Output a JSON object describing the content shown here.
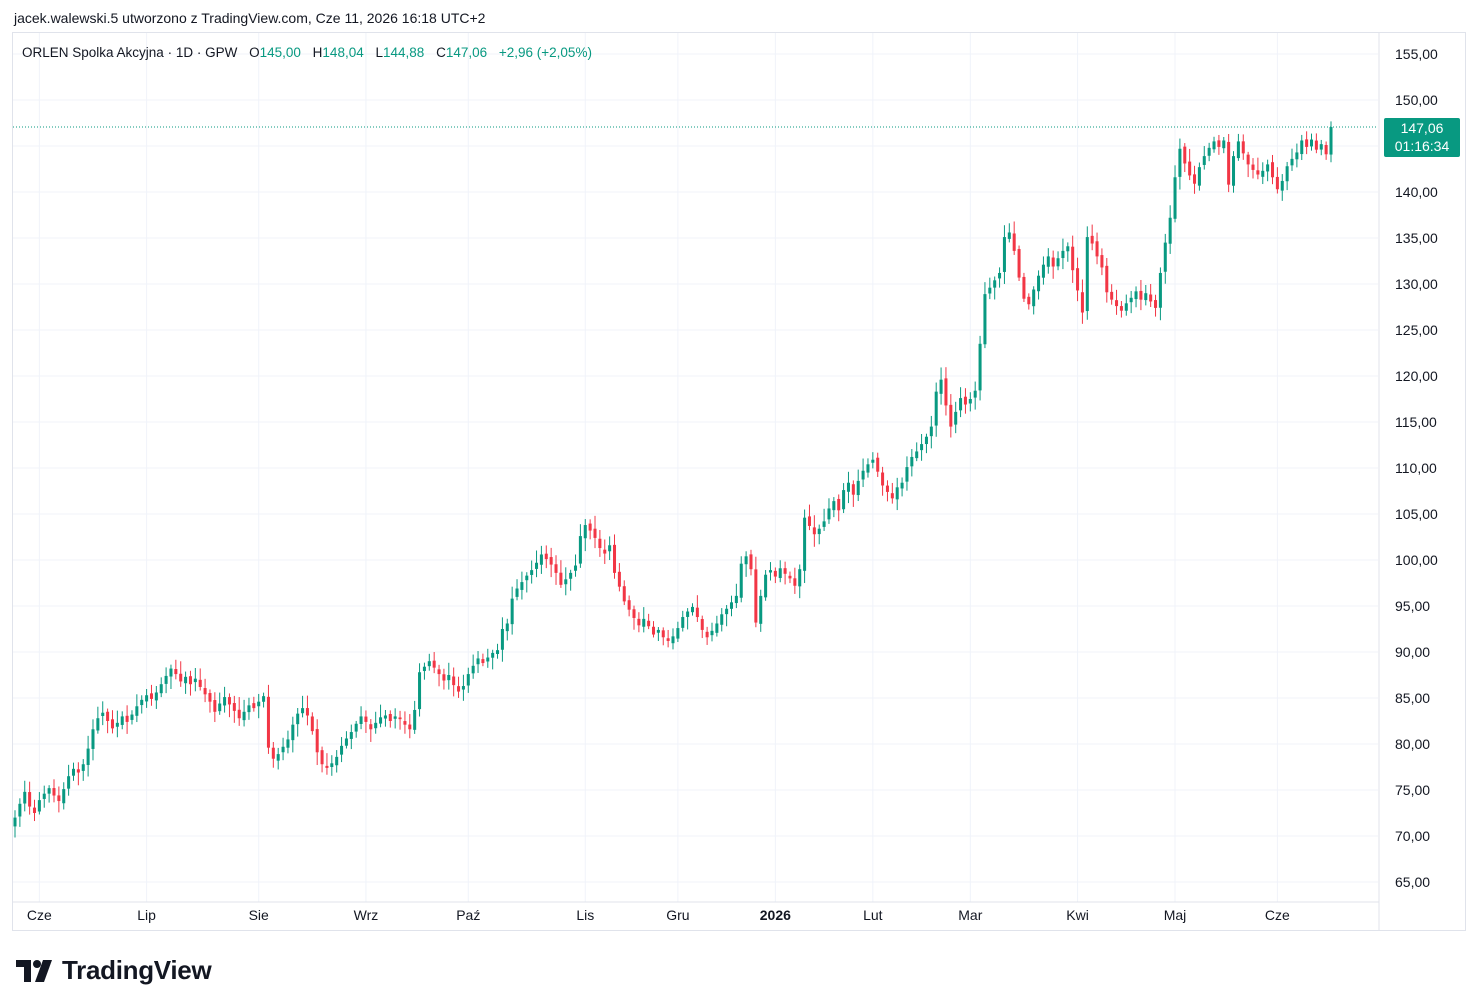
{
  "header": {
    "text": "jacek.walewski.5 utworzono z TradingView.com, Cze 11, 2026 16:18 UTC+2"
  },
  "legend": {
    "symbol": "ORLEN Spolka Akcyjna · 1D · GPW",
    "open_label": "O",
    "open": "145,00",
    "high_label": "H",
    "high": "148,04",
    "low_label": "L",
    "low": "144,88",
    "close_label": "C",
    "close": "147,06",
    "change": "+2,96 (+2,05%)"
  },
  "price_tag": {
    "price": "147,06",
    "countdown": "01:16:34"
  },
  "logo": {
    "text": "TradingView"
  },
  "colors": {
    "up": "#089981",
    "down": "#f23645",
    "grid": "#f0f3fa",
    "text": "#131722"
  },
  "chart_data": {
    "type": "candlestick",
    "title": "",
    "ylim": [
      62,
      158
    ],
    "y_ticks": [
      155,
      150,
      145,
      140,
      135,
      130,
      125,
      120,
      115,
      110,
      105,
      100,
      95,
      90,
      85,
      80,
      75,
      70,
      65
    ],
    "y_tick_labels": [
      "155,00",
      "150,00",
      "145,00",
      "140,00",
      "135,00",
      "130,00",
      "125,00",
      "120,00",
      "115,00",
      "110,00",
      "105,00",
      "100,00",
      "95,00",
      "90,00",
      "85,00",
      "80,00",
      "75,00",
      "70,00",
      "65,00"
    ],
    "x_labels": [
      {
        "label": "Cze",
        "index": 5,
        "bold": false
      },
      {
        "label": "Lip",
        "index": 27,
        "bold": false
      },
      {
        "label": "Sie",
        "index": 50,
        "bold": false
      },
      {
        "label": "Wrz",
        "index": 72,
        "bold": false
      },
      {
        "label": "Paź",
        "index": 93,
        "bold": false
      },
      {
        "label": "Lis",
        "index": 117,
        "bold": false
      },
      {
        "label": "Gru",
        "index": 136,
        "bold": false
      },
      {
        "label": "2026",
        "index": 156,
        "bold": true
      },
      {
        "label": "Lut",
        "index": 176,
        "bold": false
      },
      {
        "label": "Mar",
        "index": 196,
        "bold": false
      },
      {
        "label": "Kwi",
        "index": 218,
        "bold": false
      },
      {
        "label": "Maj",
        "index": 238,
        "bold": false
      },
      {
        "label": "Cze",
        "index": 259,
        "bold": false
      }
    ],
    "last_price": 147.06,
    "closes": [
      72.0,
      73.5,
      74.8,
      73.2,
      72.5,
      73.9,
      74.6,
      75.2,
      74.4,
      73.8,
      75.1,
      76.5,
      77.3,
      76.9,
      77.8,
      79.5,
      81.6,
      82.8,
      83.4,
      82.5,
      81.7,
      82.3,
      83.0,
      82.4,
      83.2,
      84.1,
      84.8,
      85.3,
      84.9,
      85.6,
      86.5,
      87.4,
      88.2,
      87.6,
      86.8,
      87.3,
      86.5,
      87.1,
      86.2,
      85.4,
      84.6,
      83.5,
      84.4,
      85.1,
      84.3,
      83.6,
      82.8,
      83.5,
      84.2,
      83.9,
      84.6,
      85.2,
      79.6,
      78.4,
      78.9,
      79.7,
      80.5,
      82.1,
      83.3,
      83.9,
      83.1,
      81.4,
      79.1,
      77.8,
      77.4,
      77.9,
      78.6,
      79.8,
      80.6,
      81.3,
      82.2,
      83.0,
      82.4,
      81.6,
      82.3,
      82.9,
      83.1,
      82.5,
      83.0,
      82.7,
      82.1,
      81.6,
      83.7,
      87.8,
      88.4,
      89.0,
      88.3,
      87.6,
      86.9,
      87.5,
      86.4,
      85.7,
      86.3,
      87.6,
      88.5,
      89.3,
      88.8,
      89.4,
      89.9,
      90.2,
      92.5,
      93.1,
      95.8,
      96.9,
      97.6,
      98.3,
      98.9,
      99.7,
      100.6,
      100.1,
      99.5,
      98.6,
      97.3,
      97.9,
      98.6,
      99.4,
      102.6,
      103.8,
      103.2,
      102.4,
      101.3,
      100.7,
      101.6,
      98.6,
      97.1,
      95.5,
      94.6,
      93.7,
      92.9,
      93.6,
      92.8,
      91.9,
      92.4,
      91.6,
      91.2,
      91.7,
      92.6,
      93.8,
      94.4,
      94.9,
      93.8,
      92.4,
      91.6,
      92.3,
      93.1,
      94.1,
      94.7,
      95.4,
      96.1,
      99.6,
      100.4,
      99.0,
      93.2,
      96.1,
      98.4,
      98.9,
      98.2,
      99.1,
      98.5,
      98.0,
      97.2,
      99.0,
      104.6,
      103.7,
      102.8,
      103.4,
      104.2,
      105.6,
      106.4,
      105.4,
      107.6,
      108.4,
      107.1,
      108.6,
      109.7,
      110.4,
      110.9,
      109.6,
      108.1,
      107.4,
      106.7,
      107.9,
      108.4,
      110.1,
      111.2,
      111.8,
      112.6,
      113.4,
      114.5,
      118.3,
      119.6,
      116.8,
      114.5,
      116.1,
      117.6,
      116.9,
      117.5,
      118.4,
      123.5,
      128.9,
      129.6,
      130.4,
      131.2,
      135.1,
      135.6,
      133.6,
      130.7,
      128.4,
      127.8,
      129.4,
      130.9,
      132.1,
      133.0,
      131.9,
      132.8,
      133.6,
      134.1,
      131.5,
      129.3,
      126.9,
      135.1,
      134.4,
      133.0,
      131.8,
      129.1,
      128.3,
      127.6,
      127.1,
      127.9,
      128.5,
      129.2,
      128.3,
      129.0,
      128.1,
      127.4,
      131.2,
      134.5,
      137.2,
      141.6,
      144.7,
      143.1,
      141.8,
      140.9,
      142.7,
      143.9,
      144.8,
      145.5,
      144.9,
      145.6,
      140.8,
      143.9,
      145.5,
      144.2,
      143.0,
      142.4,
      141.9,
      142.3,
      143.0,
      141.6,
      140.3,
      141.2,
      142.8,
      143.6,
      144.3,
      145.6,
      144.9,
      145.7,
      144.6,
      145.2,
      144.1,
      147.06
    ]
  }
}
